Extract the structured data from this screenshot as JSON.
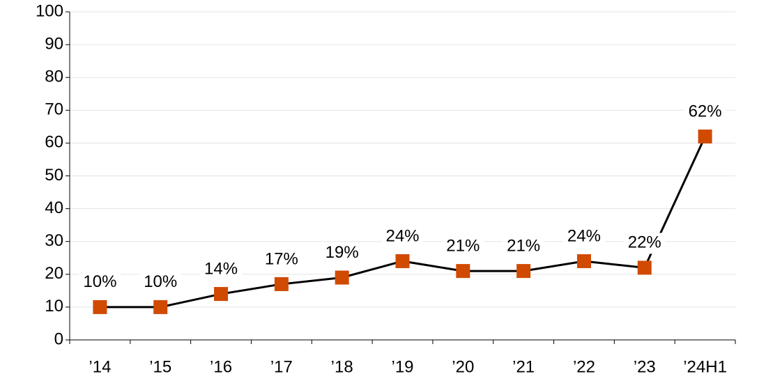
{
  "chart_data": {
    "type": "line",
    "categories": [
      "’14",
      "’15",
      "’16",
      "’17",
      "’18",
      "’19",
      "’20",
      "’21",
      "’22",
      "’23",
      "’24H1"
    ],
    "values": [
      10,
      10,
      14,
      17,
      19,
      24,
      21,
      21,
      24,
      22,
      62
    ],
    "value_labels": [
      "10%",
      "10%",
      "14%",
      "17%",
      "19%",
      "24%",
      "21%",
      "21%",
      "24%",
      "22%",
      "62%"
    ],
    "color": "#d04a02",
    "line_color": "#000000",
    "ylim": [
      0,
      100
    ],
    "yticks": [
      0,
      10,
      20,
      30,
      40,
      50,
      60,
      70,
      80,
      90,
      100
    ],
    "grid": true
  }
}
